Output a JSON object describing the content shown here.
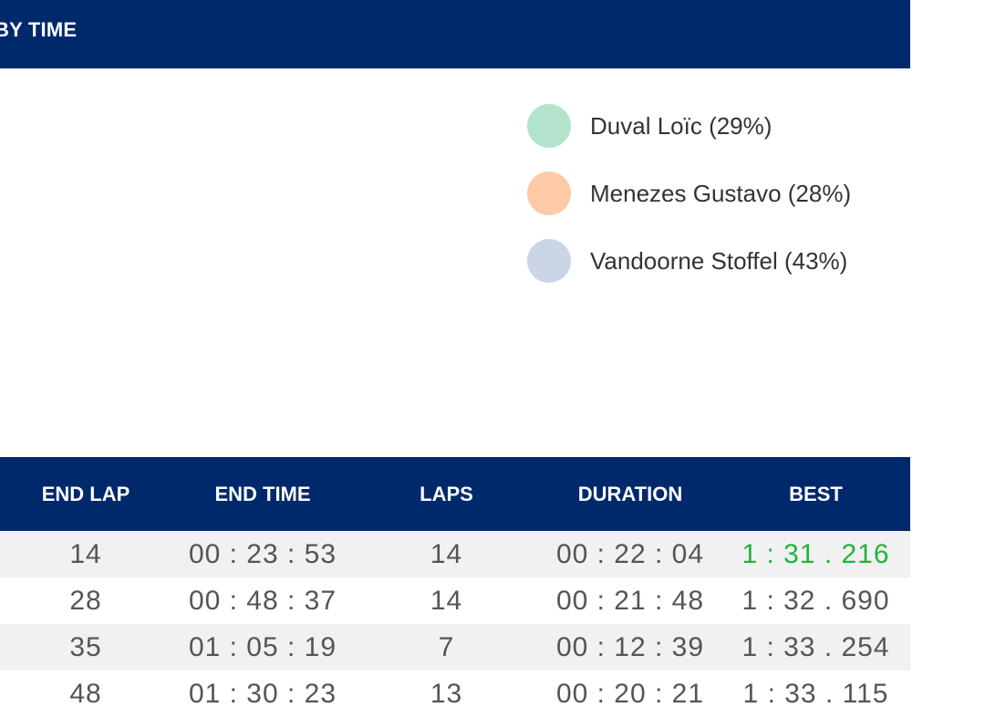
{
  "header": {
    "title": "BY TIME"
  },
  "legend": {
    "items": [
      {
        "label": "Duval Loïc (29%)",
        "color": "#b3e3cd"
      },
      {
        "label": "Menezes Gustavo (28%)",
        "color": "#fdcaa7"
      },
      {
        "label": "Vandoorne Stoffel (43%)",
        "color": "#cbd5e6"
      }
    ]
  },
  "table": {
    "columns": [
      "END LAP",
      "END TIME",
      "LAPS",
      "DURATION",
      "BEST"
    ],
    "rows": [
      {
        "end_lap": "14",
        "end_time": "00 : 23 : 53",
        "laps": "14",
        "duration": "00 : 22 : 04",
        "best": "1 : 31 . 216"
      },
      {
        "end_lap": "28",
        "end_time": "00 : 48 : 37",
        "laps": "14",
        "duration": "00 : 21 : 48",
        "best": "1 : 32 . 690"
      },
      {
        "end_lap": "35",
        "end_time": "01 : 05 : 19",
        "laps": "7",
        "duration": "00 : 12 : 39",
        "best": "1 : 33 . 254"
      },
      {
        "end_lap": "48",
        "end_time": "01 : 30 : 23",
        "laps": "13",
        "duration": "00 : 20 : 21",
        "best": "1 : 33 . 115"
      }
    ],
    "fastest_color": "#1fb53c"
  }
}
